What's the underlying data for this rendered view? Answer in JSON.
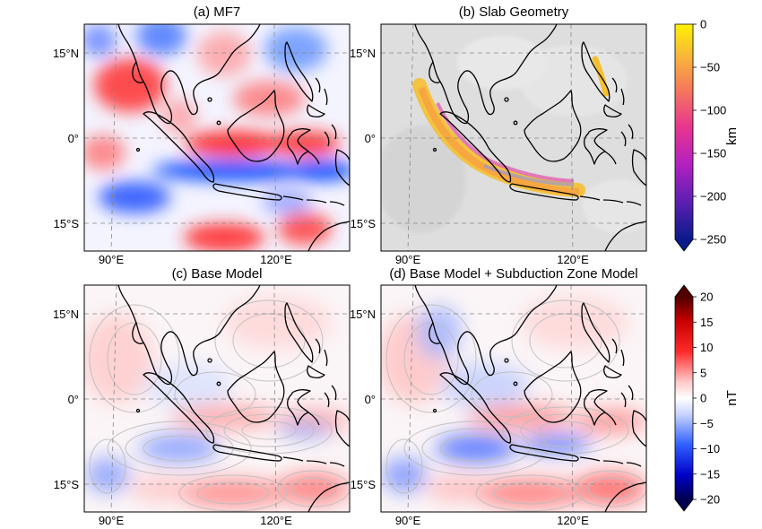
{
  "chart_data": [
    {
      "type": "heatmap",
      "title": "(a) MF7",
      "lat_ticks": [
        "15°N",
        "0°",
        "15°S"
      ],
      "lon_ticks": [
        "90°E",
        "120°E"
      ],
      "colorbar": "nT"
    },
    {
      "type": "heatmap",
      "title": "(b) Slab Geometry",
      "lat_ticks": [
        "15°N",
        "0°",
        "15°S"
      ],
      "lon_ticks": [
        "90°E",
        "120°E"
      ],
      "colorbar": "km"
    },
    {
      "type": "heatmap",
      "title": "(c) Base Model",
      "lat_ticks": [
        "15°N",
        "0°",
        "15°S"
      ],
      "lon_ticks": [
        "90°E",
        "120°E"
      ],
      "colorbar": "nT"
    },
    {
      "type": "heatmap",
      "title": "(d) Base Model + Subduction Zone Model",
      "lat_ticks": [
        "15°N",
        "0°",
        "15°S"
      ],
      "lon_ticks": [
        "90°E",
        "120°E"
      ],
      "colorbar": "nT"
    }
  ],
  "colorbars": {
    "depth": {
      "label": "km",
      "ticks": [
        "0",
        "−50",
        "−100",
        "−150",
        "−200",
        "−250"
      ],
      "values": [
        0,
        -50,
        -100,
        -150,
        -200,
        -250
      ],
      "range": [
        -250,
        0
      ],
      "colors": [
        "#0a1a8a",
        "#5a1fb0",
        "#b321c0",
        "#e8358f",
        "#f57a5a",
        "#f8b53a",
        "#fff200"
      ]
    },
    "field": {
      "label": "nT",
      "ticks": [
        "20",
        "15",
        "10",
        "5",
        "0",
        "−5",
        "−10",
        "−15",
        "−20"
      ],
      "values": [
        20,
        15,
        10,
        5,
        0,
        -5,
        -10,
        -15,
        -20
      ],
      "range": [
        -20,
        20
      ],
      "colors": [
        "#000050",
        "#0000c8",
        "#3060ff",
        "#b8c8ff",
        "#ffffff",
        "#ffb8b8",
        "#ff2a2a",
        "#c80000",
        "#500000"
      ]
    }
  }
}
